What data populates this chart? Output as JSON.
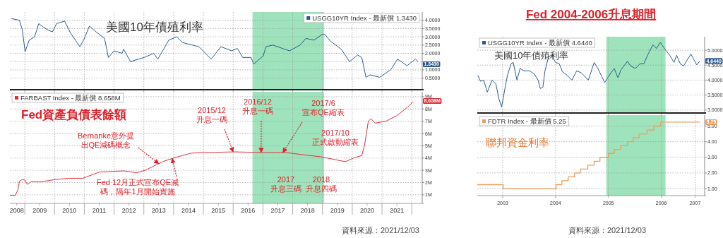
{
  "chart_data": [
    {
      "type": "line",
      "annotations": [
        "美國10年債殖利率",
        {
          "text": "1.3430",
          "y": 1.343
        }
      ],
      "x": [
        2008.05,
        2008.32,
        2008.42,
        2008.51,
        2008.65,
        2008.83,
        2008.97,
        2009.11,
        2009.29,
        2009.43,
        2009.57,
        2009.84,
        2010.03,
        2010.35,
        2010.49,
        2010.67,
        2010.86,
        2011.18,
        2011.31,
        2011.5,
        2011.77,
        2011.82,
        2012.05,
        2012.51,
        2012.83,
        2012.97,
        2013.34,
        2013.61,
        2013.8,
        2014.35,
        2014.76,
        2015.09,
        2015.45,
        2015.64,
        2015.82,
        2016.1,
        2016.19,
        2016.51,
        2016.6,
        2016.83,
        2017.39,
        2017.75,
        2017.94,
        2018.22,
        2018.49,
        2018.58,
        2018.76,
        2019.13,
        2019.41,
        2019.68,
        2019.82,
        2019.96,
        2020.1,
        2020.42,
        2020.79,
        2021.02,
        2021.34,
        2021.62,
        2021.71
      ],
      "series": [
        {
          "name": "USGG10YR Index - 最新價 1.3430",
          "color": "#2b5b8c",
          "values": [
            4.1,
            4.0,
            3.4,
            2.1,
            2.8,
            3.0,
            3.8,
            3.6,
            3.4,
            3.3,
            3.8,
            3.95,
            3.25,
            2.4,
            2.85,
            3.65,
            3.35,
            2.9,
            1.75,
            2.15,
            2.0,
            2.25,
            1.5,
            1.75,
            2.0,
            1.65,
            2.8,
            3.0,
            2.65,
            2.4,
            1.65,
            2.4,
            2.15,
            2.3,
            1.75,
            1.75,
            1.35,
            1.85,
            2.4,
            2.5,
            2.15,
            2.5,
            2.9,
            2.8,
            3.15,
            3.15,
            2.75,
            2.25,
            1.5,
            1.9,
            1.75,
            0.55,
            0.7,
            0.55,
            1.0,
            1.65,
            1.25,
            1.65,
            1.5
          ]
        }
      ],
      "xlim": [
        2008.0,
        2021.85
      ],
      "xticks": [
        {
          "value": 2008.5,
          "label": null
        },
        {
          "value": 2009.5,
          "label": null
        },
        {
          "value": 2010.5,
          "label": null
        },
        {
          "value": 2011.5,
          "label": null
        },
        {
          "value": 2012.5,
          "label": null
        },
        {
          "value": 2013.5,
          "label": null
        },
        {
          "value": 2014.5,
          "label": null
        },
        {
          "value": 2015.5,
          "label": null
        },
        {
          "value": 2016.5,
          "label": null
        },
        {
          "value": 2017.5,
          "label": null
        },
        {
          "value": 2018.5,
          "label": null
        },
        {
          "value": 2019.5,
          "label": null
        },
        {
          "value": 2020.5,
          "label": null
        },
        {
          "value": 2021.5,
          "label": null
        }
      ],
      "ylim": [
        -0.2,
        4.5
      ],
      "yticks": [
        {
          "value": 0.5,
          "label": "0.5000"
        },
        {
          "value": 1,
          "label": "1.0000"
        },
        {
          "value": 1.5,
          "label": null
        },
        {
          "value": 2,
          "label": "2.0000"
        },
        {
          "value": 2.5,
          "label": "2.5000"
        },
        {
          "value": 3,
          "label": "3.0000"
        },
        {
          "value": 3.5,
          "label": "3.5000"
        },
        {
          "value": 4,
          "label": "4.0000"
        }
      ],
      "tick_labels": "y",
      "grid": true,
      "legend": "top right",
      "bands": [
        {
          "axis": "x",
          "from": 2016.15,
          "to": 2018.55,
          "color": "#86dcaa"
        }
      ]
    },
    {
      "type": "line",
      "annotations": [
        "Fed資產負債表餘額",
        {
          "text": "Bernanke意外提出QE減碼概念",
          "x": 2013.0,
          "y": 3.54
        },
        {
          "text": "Fed 12月正式宣布QE減碼，隔年1月開始實施",
          "x": 2013.45,
          "y": 3.96
        },
        {
          "text": "2015/12升息一碼",
          "x": 2015.5,
          "y": 4.5
        },
        {
          "text": "2016/12升息一碼",
          "x": 2016.44,
          "y": 4.46
        },
        {
          "text": "2017/6宣布QE縮表",
          "x": 2017.17,
          "y": 4.45
        },
        "2017/10正式啟動縮表",
        "2017升息三碼",
        "2018升息四碼",
        {
          "text": "8.658M",
          "y": 8.658
        },
        "資料來源：2021/12/03"
      ],
      "x": [
        2008.0,
        2008.18,
        2008.27,
        2008.32,
        2008.41,
        2008.5,
        2008.59,
        2008.73,
        2009.0,
        2009.54,
        2010.0,
        2010.45,
        2011.0,
        2011.36,
        2011.82,
        2012.27,
        2012.54,
        2013.18,
        2013.64,
        2014.09,
        2014.54,
        2015.54,
        2016.54,
        2017.27,
        2017.73,
        2018.45,
        2019.27,
        2019.54,
        2019.82,
        2019.91,
        2020.04,
        2020.13,
        2020.27,
        2020.63,
        2020.99,
        2021.36,
        2021.54
      ],
      "series": [
        {
          "name": "FARBAST Index - 最新價 8.658M",
          "color": "#e0303a",
          "values": [
            0.95,
            0.95,
            1.4,
            2.1,
            2.25,
            2.2,
            1.85,
            2.1,
            2.05,
            2.25,
            2.35,
            2.35,
            2.85,
            2.9,
            2.95,
            2.8,
            3.0,
            3.75,
            4.1,
            4.4,
            4.45,
            4.5,
            4.45,
            4.45,
            4.3,
            4.1,
            3.7,
            4.0,
            4.2,
            5.0,
            7.0,
            7.2,
            6.85,
            7.0,
            7.45,
            8.15,
            8.6
          ]
        }
      ],
      "xlim": [
        2008.0,
        2021.85
      ],
      "xticks": [
        {
          "value": 2008.23,
          "label": "2008"
        },
        {
          "value": 2008.5,
          "label": null
        },
        {
          "value": 2009,
          "label": "2009"
        },
        {
          "value": 2009.5,
          "label": null
        },
        {
          "value": 2010,
          "label": "2010"
        },
        {
          "value": 2010.5,
          "label": null
        },
        {
          "value": 2011,
          "label": "2011"
        },
        {
          "value": 2011.5,
          "label": null
        },
        {
          "value": 2012,
          "label": "2012"
        },
        {
          "value": 2012.5,
          "label": null
        },
        {
          "value": 2013,
          "label": "2013"
        },
        {
          "value": 2013.5,
          "label": null
        },
        {
          "value": 2014,
          "label": "2014"
        },
        {
          "value": 2014.5,
          "label": null
        },
        {
          "value": 2015,
          "label": "2015"
        },
        {
          "value": 2015.5,
          "label": null
        },
        {
          "value": 2016,
          "label": "2016"
        },
        {
          "value": 2016.5,
          "label": null
        },
        {
          "value": 2017,
          "label": "2017"
        },
        {
          "value": 2017.5,
          "label": null
        },
        {
          "value": 2018,
          "label": "2018"
        },
        {
          "value": 2018.5,
          "label": null
        },
        {
          "value": 2019,
          "label": "2019"
        },
        {
          "value": 2019.5,
          "label": null
        },
        {
          "value": 2020,
          "label": "2020"
        },
        {
          "value": 2020.5,
          "label": null
        },
        {
          "value": 2021,
          "label": "2021"
        },
        {
          "value": 2021.5,
          "label": null
        }
      ],
      "ylim": [
        0.3,
        9.4
      ],
      "yticks": [
        {
          "value": 1,
          "label": "1M"
        },
        {
          "value": 2,
          "label": "2M"
        },
        {
          "value": 3,
          "label": "3M"
        },
        {
          "value": 4,
          "label": "4M"
        },
        {
          "value": 5,
          "label": "5M"
        },
        {
          "value": 6,
          "label": "6M"
        },
        {
          "value": 7,
          "label": "7M"
        },
        {
          "value": 8,
          "label": "8M"
        },
        {
          "value": 9,
          "label": "9M"
        }
      ],
      "grid": true,
      "legend": "top left",
      "bands": [
        {
          "axis": "x",
          "from": 2016.15,
          "to": 2018.55,
          "color": "#86dcaa"
        }
      ]
    },
    {
      "type": "line",
      "title": "Fed 2004-2006升息期間",
      "annotations": [
        "美國10年債殖利率",
        {
          "text": "4.6440",
          "y": 4.644
        }
      ],
      "x": [
        2002.53,
        2002.58,
        2002.64,
        2002.71,
        2002.8,
        2002.87,
        2002.93,
        2002.98,
        2003.04,
        2003.09,
        2003.16,
        2003.2,
        2003.27,
        2003.33,
        2003.4,
        2003.51,
        2003.6,
        2003.67,
        2003.71,
        2003.76,
        2003.8,
        2003.87,
        2003.93,
        2004.0,
        2004.07,
        2004.13,
        2004.22,
        2004.31,
        2004.4,
        2004.49,
        2004.62,
        2004.73,
        2004.8,
        2004.93,
        2005.0,
        2005.11,
        2005.18,
        2005.24,
        2005.36,
        2005.42,
        2005.51,
        2005.6,
        2005.67,
        2005.76,
        2005.84,
        2005.91,
        2005.98,
        2006.09,
        2006.16,
        2006.24,
        2006.29,
        2006.36,
        2006.42,
        2006.56,
        2006.67,
        2006.73
      ],
      "series": [
        {
          "name": "USGG10YR Index - 最新價 4.6440",
          "color": "#2b5b8c",
          "values": [
            4.16,
            3.96,
            4.0,
            3.6,
            4.0,
            3.88,
            3.37,
            3.1,
            3.69,
            4.16,
            4.55,
            4.59,
            4.0,
            4.39,
            4.31,
            4.31,
            4.2,
            4.0,
            3.72,
            3.76,
            4.31,
            4.79,
            4.83,
            4.59,
            4.55,
            4.28,
            4.16,
            4.0,
            4.31,
            4.24,
            4.0,
            4.59,
            4.39,
            3.92,
            4.12,
            4.39,
            4.08,
            4.35,
            4.63,
            4.47,
            4.39,
            4.55,
            4.55,
            4.9,
            5.18,
            5.06,
            5.26,
            4.98,
            4.83,
            4.59,
            4.83,
            4.55,
            4.47,
            4.87,
            4.51,
            4.63
          ]
        }
      ],
      "xlim": [
        2002.52,
        2006.82
      ],
      "xticks": [
        {
          "value": 2003,
          "label": null
        },
        {
          "value": 2004,
          "label": null
        },
        {
          "value": 2005,
          "label": null
        },
        {
          "value": 2006,
          "label": null
        }
      ],
      "ylim": [
        2.9,
        5.45
      ],
      "yticks": [
        {
          "value": 3,
          "label": "3.0000"
        },
        {
          "value": 3.5,
          "label": "3.5000"
        },
        {
          "value": 4,
          "label": "4.0000"
        },
        {
          "value": 4.5,
          "label": "4.5000"
        },
        {
          "value": 5,
          "label": "5.0000"
        }
      ],
      "tick_labels": "y",
      "grid": true,
      "legend": "top left",
      "bands": [
        {
          "axis": "x",
          "from": 2004.96,
          "to": 2006.08,
          "color": "#86dcaa"
        }
      ]
    },
    {
      "type": "step",
      "annotations": [
        "聯邦資金利率",
        {
          "text": "5.25",
          "y": 5.25
        },
        "資料來源：2021/12/03"
      ],
      "x": [
        2002.52,
        2003.01,
        2004.01,
        2004.12,
        2004.24,
        2004.36,
        2004.47,
        2004.61,
        2004.73,
        2004.84,
        2005.0,
        2005.11,
        2005.23,
        2005.36,
        2005.47,
        2005.58,
        2005.73,
        2005.86,
        2005.99,
        2006.73
      ],
      "series": [
        {
          "name": "FDTR Index - 最新價 5.25",
          "color": "#e8a060",
          "values": [
            1.25,
            1.0,
            1.25,
            1.5,
            1.75,
            2.0,
            2.25,
            2.5,
            2.75,
            3.0,
            3.25,
            3.5,
            3.75,
            4.0,
            4.25,
            4.5,
            4.75,
            5.0,
            5.25,
            5.25
          ]
        }
      ],
      "xlim": [
        2002.52,
        2006.82
      ],
      "xticks": [
        {
          "value": 2003,
          "label": "2003"
        },
        {
          "value": 2004,
          "label": "2004"
        },
        {
          "value": 2005,
          "label": "2005"
        },
        {
          "value": 2006,
          "label": "2006"
        },
        {
          "value": 2006.64,
          "label": "2007"
        }
      ],
      "ylim": [
        0.55,
        5.7
      ],
      "yticks": [
        {
          "value": 1,
          "label": "1.00"
        },
        {
          "value": 2,
          "label": "2.00"
        },
        {
          "value": 3,
          "label": "3.00"
        },
        {
          "value": 4,
          "label": "4.00"
        },
        {
          "value": 5,
          "label": "5.00"
        }
      ],
      "grid": true,
      "legend": "top left",
      "bands": [
        {
          "axis": "x",
          "from": 2004.96,
          "to": 2006.08,
          "color": "#86dcaa"
        }
      ]
    }
  ]
}
